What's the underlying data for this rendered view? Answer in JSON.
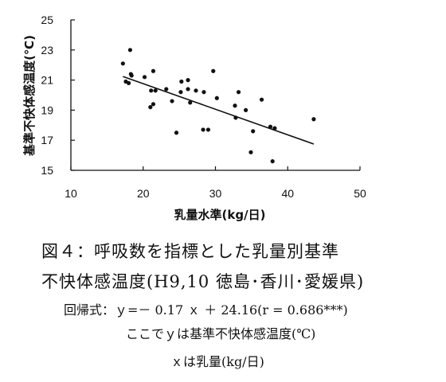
{
  "chart_data": {
    "type": "scatter",
    "xlabel": "乳量水準(kg/日)",
    "ylabel": "基準不快体感温度(℃)",
    "xlim": [
      10,
      50
    ],
    "ylim": [
      15,
      25
    ],
    "x_ticks": [
      "10",
      "20",
      "30",
      "40",
      "50"
    ],
    "y_ticks": [
      "15",
      "17",
      "19",
      "21",
      "23",
      "25"
    ],
    "grid": false,
    "points": [
      {
        "x": 17.2,
        "y": 22.1
      },
      {
        "x": 18.2,
        "y": 23.0
      },
      {
        "x": 18.3,
        "y": 21.4
      },
      {
        "x": 18.4,
        "y": 21.3
      },
      {
        "x": 17.6,
        "y": 20.9
      },
      {
        "x": 18.0,
        "y": 20.8
      },
      {
        "x": 20.2,
        "y": 21.2
      },
      {
        "x": 21.4,
        "y": 21.6
      },
      {
        "x": 21.1,
        "y": 20.3
      },
      {
        "x": 21.7,
        "y": 20.3
      },
      {
        "x": 23.2,
        "y": 20.4
      },
      {
        "x": 21.4,
        "y": 19.4
      },
      {
        "x": 21.0,
        "y": 19.2
      },
      {
        "x": 24.0,
        "y": 19.6
      },
      {
        "x": 25.3,
        "y": 20.9
      },
      {
        "x": 25.2,
        "y": 20.2
      },
      {
        "x": 26.2,
        "y": 21.0
      },
      {
        "x": 26.2,
        "y": 20.4
      },
      {
        "x": 26.5,
        "y": 19.5
      },
      {
        "x": 27.3,
        "y": 20.3
      },
      {
        "x": 28.4,
        "y": 20.2
      },
      {
        "x": 29.7,
        "y": 21.6
      },
      {
        "x": 24.6,
        "y": 17.5
      },
      {
        "x": 28.3,
        "y": 17.7
      },
      {
        "x": 29.0,
        "y": 17.7
      },
      {
        "x": 30.2,
        "y": 19.8
      },
      {
        "x": 32.7,
        "y": 19.3
      },
      {
        "x": 33.2,
        "y": 20.2
      },
      {
        "x": 32.8,
        "y": 18.5
      },
      {
        "x": 34.2,
        "y": 19.0
      },
      {
        "x": 36.4,
        "y": 19.7
      },
      {
        "x": 35.2,
        "y": 17.6
      },
      {
        "x": 34.9,
        "y": 16.2
      },
      {
        "x": 37.6,
        "y": 17.9
      },
      {
        "x": 38.2,
        "y": 17.8
      },
      {
        "x": 37.9,
        "y": 15.6
      },
      {
        "x": 43.6,
        "y": 18.4
      }
    ],
    "regression": {
      "slope": -0.17,
      "intercept": 24.16,
      "x_range": [
        17.2,
        43.6
      ]
    }
  },
  "caption": {
    "line1": "図４：呼吸数を指標とした乳量別基準",
    "line2": "不快体感温度(H9,10 徳島･香川･愛媛県)",
    "line3": "回帰式：ｙ=－ 0.17 ｘ ＋ 24.16(r = 0.686***)",
    "line4": "ここでｙは基準不快体感温度(℃)",
    "line5": "ｘは乳量(kg/日)"
  }
}
